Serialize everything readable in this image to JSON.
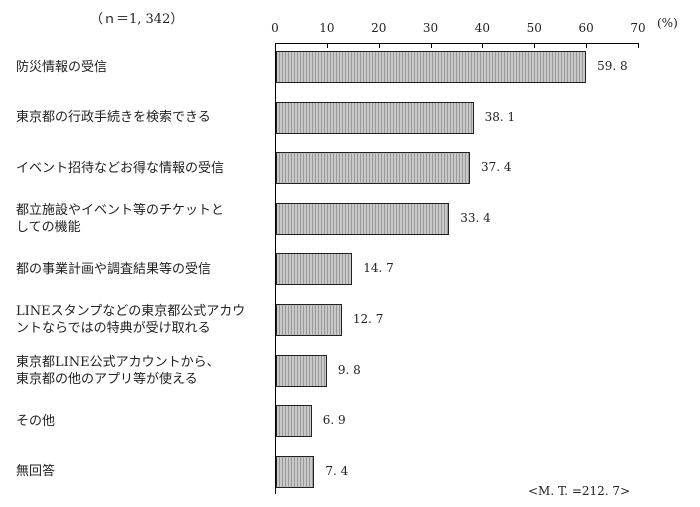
{
  "chart_data": {
    "type": "bar",
    "orientation": "horizontal",
    "title": "",
    "sample_size_label": "（ｎ＝1, 342）",
    "unit_label": "(%)",
    "xlabel": "",
    "ylabel": "",
    "xlim": [
      0,
      70
    ],
    "ticks": [
      "0",
      "10",
      "20",
      "30",
      "40",
      "50",
      "60",
      "70"
    ],
    "grid": false,
    "legend": null,
    "categories": [
      "防災情報の受信",
      "東京都の行政手続きを検索できる",
      "イベント招待などお得な情報の受信",
      "都立施設やイベント等のチケットとしての機能",
      "都の事業計画や調査結果等の受信",
      "LINEスタンプなどの東京都公式アカウントならではの特典が受け取れる",
      "東京都LINE公式アカウントから、東京都の他のアプリ等が使える",
      "その他",
      "無回答"
    ],
    "category_lines": [
      [
        "防災情報の受信"
      ],
      [
        "東京都の行政手続きを検索できる"
      ],
      [
        "イベント招待などお得な情報の受信"
      ],
      [
        "都立施設やイベント等のチケットと",
        "しての機能"
      ],
      [
        "都の事業計画や調査結果等の受信"
      ],
      [
        "LINEスタンプなどの東京都公式アカウ",
        "ントならではの特典が受け取れる"
      ],
      [
        "東京都LINE公式アカウントから、",
        "東京都の他のアプリ等が使える"
      ],
      [
        "その他"
      ],
      [
        "無回答"
      ]
    ],
    "values": [
      59.8,
      38.1,
      37.4,
      33.4,
      14.7,
      12.7,
      9.8,
      6.9,
      7.4
    ],
    "value_labels": [
      "59. 8",
      "38. 1",
      "37. 4",
      "33. 4",
      "14. 7",
      "12. 7",
      "9. 8",
      "6. 9",
      "7. 4"
    ],
    "annotation": "<M. T. =212. 7>"
  }
}
